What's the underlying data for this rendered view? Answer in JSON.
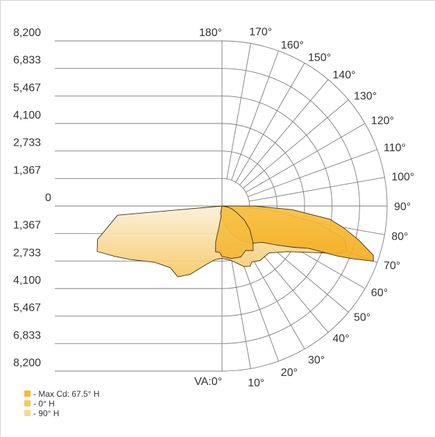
{
  "chart_data": {
    "type": "polar",
    "y_tick_labels": [
      "8,200",
      "6,833",
      "5,467",
      "4,100",
      "2,733",
      "1,367",
      "0",
      "1,367",
      "2,733",
      "4,100",
      "5,467",
      "6,833",
      "8,200"
    ],
    "radial_max": 8200,
    "radial_rings": [
      1367,
      2733,
      4100,
      5467,
      6833,
      8200
    ],
    "angle_labels": [
      {
        "deg": 0,
        "text": "VA:0°"
      },
      {
        "deg": 10,
        "text": "10°"
      },
      {
        "deg": 20,
        "text": "20°"
      },
      {
        "deg": 30,
        "text": "30°"
      },
      {
        "deg": 40,
        "text": "40°"
      },
      {
        "deg": 50,
        "text": "50°"
      },
      {
        "deg": 60,
        "text": "60°"
      },
      {
        "deg": 70,
        "text": "70°"
      },
      {
        "deg": 80,
        "text": "80°"
      },
      {
        "deg": 90,
        "text": "90°"
      },
      {
        "deg": 100,
        "text": "100°"
      },
      {
        "deg": 110,
        "text": "110°"
      },
      {
        "deg": 120,
        "text": "120°"
      },
      {
        "deg": 130,
        "text": "130°"
      },
      {
        "deg": 140,
        "text": "140°"
      },
      {
        "deg": 150,
        "text": "150°"
      },
      {
        "deg": 160,
        "text": "160°"
      },
      {
        "deg": 170,
        "text": "170°"
      },
      {
        "deg": 180,
        "text": "180°"
      }
    ],
    "series": [
      {
        "name": "- 90° H",
        "color": "#f6d98f",
        "points": [
          [
            -85,
            5200
          ],
          [
            -75,
            6400
          ],
          [
            -70,
            6600
          ],
          [
            -65,
            5900
          ],
          [
            -60,
            5300
          ],
          [
            -50,
            4350
          ],
          [
            -40,
            4000
          ],
          [
            -32,
            4150
          ],
          [
            -25,
            3750
          ],
          [
            -15,
            3000
          ],
          [
            -8,
            2700
          ],
          [
            0,
            2600
          ],
          [
            8,
            2700
          ],
          [
            15,
            2950
          ],
          [
            20,
            3200
          ],
          [
            25,
            3300
          ],
          [
            28,
            3150
          ],
          [
            35,
            3300
          ],
          [
            45,
            3300
          ],
          [
            55,
            3950
          ],
          [
            62,
            4900
          ],
          [
            68,
            6300
          ],
          [
            70,
            6600
          ],
          [
            75,
            6300
          ],
          [
            80,
            4800
          ],
          [
            85,
            2500
          ],
          [
            90,
            900
          ]
        ]
      },
      {
        "name": "- Max Cd: 67.5° H",
        "color": "#f7b933",
        "points": [
          [
            -10,
            400
          ],
          [
            -3,
            300
          ],
          [
            0,
            600
          ],
          [
            10,
            1000
          ],
          [
            20,
            1500
          ],
          [
            30,
            2000
          ],
          [
            40,
            2400
          ],
          [
            48,
            2700
          ],
          [
            55,
            3400
          ],
          [
            60,
            4100
          ],
          [
            64,
            4800
          ],
          [
            66.5,
            6200
          ],
          [
            68,
            7000
          ],
          [
            70,
            8000
          ],
          [
            72,
            7900
          ],
          [
            76,
            7000
          ],
          [
            80,
            6100
          ],
          [
            83,
            5400
          ],
          [
            87,
            3500
          ],
          [
            90,
            1600
          ]
        ]
      },
      {
        "name": "- 0° H",
        "color": "#f7c85e",
        "points": [
          [
            -10,
            400
          ],
          [
            -5,
            500
          ],
          [
            -8,
            1000
          ],
          [
            -10,
            1800
          ],
          [
            -8,
            2300
          ],
          [
            -3,
            2300
          ],
          [
            0,
            2500
          ],
          [
            10,
            2650
          ],
          [
            20,
            2700
          ],
          [
            28,
            2500
          ],
          [
            35,
            2700
          ],
          [
            40,
            2400
          ],
          [
            50,
            1800
          ],
          [
            58,
            1300
          ],
          [
            66,
            800
          ],
          [
            74,
            500
          ],
          [
            80,
            300
          ]
        ]
      }
    ],
    "legend": [
      {
        "label": "- Max Cd: 67.5° H",
        "color": "#f7b933"
      },
      {
        "label": "- 0° H",
        "color": "#f7c85e"
      },
      {
        "label": "- 90° H",
        "color": "#f6d98f"
      }
    ]
  }
}
